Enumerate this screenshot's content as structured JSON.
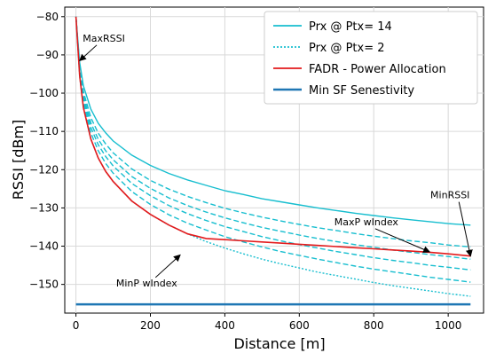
{
  "chart_data": {
    "type": "line",
    "xlabel": "Distance [m]",
    "ylabel": "RSSI [dBm]",
    "xlim": [
      -30,
      1095
    ],
    "ylim": [
      -157.5,
      -77.5
    ],
    "xticks": [
      0,
      200,
      400,
      600,
      800,
      1000
    ],
    "yticks": [
      -80,
      -90,
      -100,
      -110,
      -120,
      -130,
      -140,
      -150
    ],
    "xtick_labels": [
      "0",
      "200",
      "400",
      "600",
      "800",
      "1000"
    ],
    "ytick_labels": [
      "−80",
      "−90",
      "−100",
      "−110",
      "−120",
      "−130",
      "−140",
      "−150"
    ],
    "grid": true,
    "legend_position": "top-right",
    "x": [
      0,
      10,
      20,
      40,
      60,
      80,
      100,
      150,
      200,
      250,
      300,
      350,
      400,
      450,
      500,
      550,
      600,
      650,
      700,
      750,
      800,
      850,
      900,
      950,
      1000,
      1060
    ],
    "series": [
      {
        "name": "Prx @ Ptx= 14",
        "style": "solid",
        "color": "#17becf",
        "values": [
          -80.0,
          -92.0,
          -98.1,
          -104.2,
          -107.9,
          -110.4,
          -112.5,
          -116.2,
          -118.9,
          -121.0,
          -122.7,
          -124.1,
          -125.5,
          -126.5,
          -127.6,
          -128.4,
          -129.2,
          -130.0,
          -130.7,
          -131.4,
          -132.0,
          -132.6,
          -133.1,
          -133.6,
          -134.1,
          -134.5
        ]
      },
      {
        "name": "",
        "style": "dashed",
        "color": "#17becf",
        "values": [
          -80.0,
          -92.7,
          -99.6,
          -106.4,
          -110.5,
          -113.3,
          -115.6,
          -119.8,
          -122.8,
          -125.1,
          -127.0,
          -128.6,
          -130.1,
          -131.3,
          -132.4,
          -133.4,
          -134.3,
          -135.2,
          -135.9,
          -136.7,
          -137.4,
          -138.0,
          -138.6,
          -139.1,
          -139.7,
          -140.2
        ]
      },
      {
        "name": "",
        "style": "dashed",
        "color": "#17becf",
        "values": [
          -80.0,
          -93.4,
          -100.6,
          -107.8,
          -112.1,
          -115.1,
          -117.4,
          -121.8,
          -124.9,
          -127.4,
          -129.4,
          -131.1,
          -132.6,
          -133.9,
          -135.1,
          -136.1,
          -137.1,
          -138.0,
          -138.8,
          -139.6,
          -140.3,
          -141.0,
          -141.6,
          -142.2,
          -142.7,
          -143.4
        ]
      },
      {
        "name": "",
        "style": "dashed",
        "color": "#17becf",
        "values": [
          -80.0,
          -94.0,
          -101.5,
          -109.0,
          -113.5,
          -116.6,
          -119.0,
          -123.6,
          -126.8,
          -129.4,
          -131.5,
          -133.3,
          -134.9,
          -136.2,
          -137.5,
          -138.6,
          -139.6,
          -140.5,
          -141.4,
          -142.2,
          -143.0,
          -143.7,
          -144.3,
          -145.0,
          -145.5,
          -146.2
        ]
      },
      {
        "name": "",
        "style": "dashed",
        "color": "#17becf",
        "values": [
          -80.0,
          -94.7,
          -102.5,
          -110.4,
          -115.1,
          -118.4,
          -120.9,
          -125.7,
          -129.1,
          -131.8,
          -134.0,
          -135.8,
          -137.5,
          -138.9,
          -140.2,
          -141.4,
          -142.4,
          -143.4,
          -144.3,
          -145.2,
          -146.0,
          -146.7,
          -147.4,
          -148.1,
          -148.7,
          -149.4
        ]
      },
      {
        "name": "Prx @ Ptx= 2",
        "style": "dotted",
        "color": "#17becf",
        "values": [
          -80.0,
          -95.5,
          -103.8,
          -112.0,
          -117.0,
          -120.5,
          -123.1,
          -128.2,
          -131.7,
          -134.5,
          -136.8,
          -138.8,
          -140.5,
          -142.0,
          -143.4,
          -144.6,
          -145.7,
          -146.8,
          -147.7,
          -148.6,
          -149.5,
          -150.3,
          -151.0,
          -151.7,
          -152.4,
          -153.1
        ]
      },
      {
        "name": "FADR - Power Allocation",
        "style": "solid",
        "color": "#e31a1c",
        "values": [
          -80.0,
          -95.5,
          -103.8,
          -112.0,
          -117.0,
          -120.5,
          -123.1,
          -128.2,
          -131.7,
          -134.5,
          -136.8,
          -138.0,
          -138.3,
          -138.6,
          -138.9,
          -139.2,
          -139.5,
          -139.8,
          -140.1,
          -140.4,
          -140.7,
          -141.0,
          -141.3,
          -141.6,
          -142.0,
          -142.6
        ]
      },
      {
        "name": "Min SF Senestivity",
        "style": "solid",
        "color": "#1f77b4",
        "values": [
          -155.2,
          -155.2,
          -155.2,
          -155.2,
          -155.2,
          -155.2,
          -155.2,
          -155.2,
          -155.2,
          -155.2,
          -155.2,
          -155.2,
          -155.2,
          -155.2,
          -155.2,
          -155.2,
          -155.2,
          -155.2,
          -155.2,
          -155.2,
          -155.2,
          -155.2,
          -155.2,
          -155.2,
          -155.2,
          -155.2
        ]
      }
    ],
    "annotations": [
      {
        "text": "MaxRSSI",
        "x": 10,
        "y": -91.5,
        "text_x": 75,
        "text_y": -86.5
      },
      {
        "text": "MinP  wIndex",
        "x": 280,
        "y": -142.3,
        "text_x": 190,
        "text_y": -150.5
      },
      {
        "text": "MaxP  wIndex",
        "x": 950,
        "y": -141.5,
        "text_x": 780,
        "text_y": -134.5
      },
      {
        "text": "MinRSSI",
        "x": 1060,
        "y": -142.6,
        "text_x": 1005,
        "text_y": -127.5
      }
    ]
  }
}
